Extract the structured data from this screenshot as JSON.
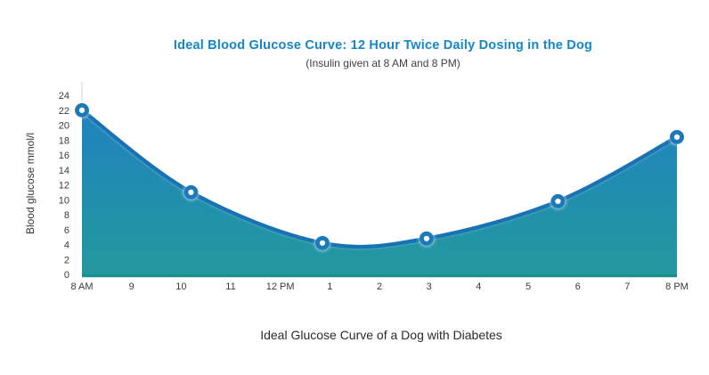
{
  "header": {
    "title": "Ideal Blood Glucose Curve: 12 Hour Twice Daily Dosing in the Dog",
    "subtitle": "(Insulin given at 8 AM and 8 PM)"
  },
  "caption": "Ideal Glucose Curve of a Dog with Diabetes",
  "chart_data": {
    "type": "area",
    "title": "Ideal Blood Glucose Curve: 12 Hour Twice Daily Dosing in the Dog",
    "subtitle": "(Insulin given at 8 AM and 8 PM)",
    "ylabel": "Blood glucose mmol/l",
    "xlabel": "",
    "ylim": [
      0,
      24
    ],
    "ytick_labels": [
      24,
      22,
      20,
      18,
      16,
      14,
      12,
      10,
      8,
      6,
      4,
      2,
      0
    ],
    "xtick_labels": [
      "8 AM",
      "9",
      "10",
      "11",
      "12 PM",
      "1",
      "2",
      "3",
      "4",
      "5",
      "6",
      "7",
      "8 PM"
    ],
    "x_hours_range": [
      0,
      12
    ],
    "grid": false,
    "legend": false,
    "series": [
      {
        "name": "Blood glucose (mmol/l)",
        "points": [
          {
            "time": "8:00 AM",
            "hour": 0,
            "value": 22
          },
          {
            "time": "10:10 AM",
            "hour": 2.2,
            "value": 11
          },
          {
            "time": "12:50 PM",
            "hour": 4.85,
            "value": 4.2
          },
          {
            "time": "2:55 PM",
            "hour": 6.95,
            "value": 4.8
          },
          {
            "time": "5:35 PM",
            "hour": 9.6,
            "value": 9.8
          },
          {
            "time": "8:00 PM",
            "hour": 12,
            "value": 18.4
          }
        ]
      }
    ],
    "colors": {
      "line": "#1673b4",
      "area_top": "#1e80c2",
      "area_bottom": "#23999e",
      "baseline": "#1d8e93",
      "marker_fill": "#1a79ba",
      "marker_center": "#ffffff",
      "gridline": "#d9e2e8",
      "title": "#1586c8",
      "text": "#3a3a3a"
    }
  }
}
